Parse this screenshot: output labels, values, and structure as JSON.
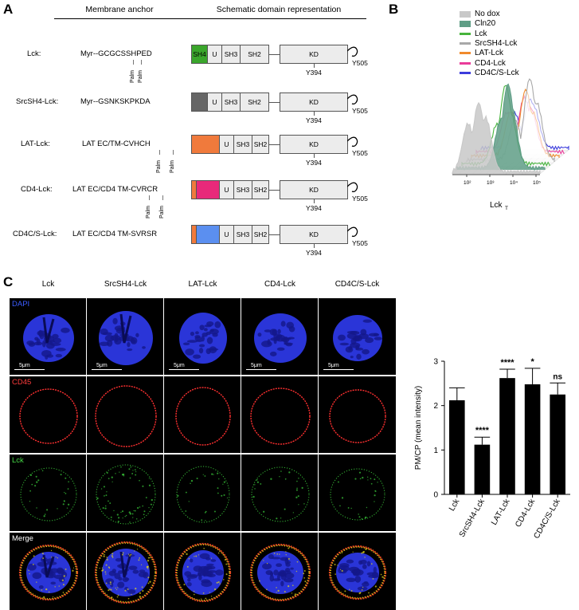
{
  "panel_a": {
    "letter": "A",
    "header_anchor": "Membrane anchor",
    "header_schematic": "Schematic domain representation",
    "constructs": [
      {
        "name": "Lck:",
        "anchor": "Myr--GCGCSSHPED",
        "palm": [
          "Palm",
          "Palm"
        ],
        "n_term": "SH4",
        "n_term_color": "#3aa62b"
      },
      {
        "name": "SrcSH4-Lck:",
        "anchor": "Myr--GSNKSKPKDA",
        "palm": [],
        "n_term": "",
        "n_term_color": "#666666"
      },
      {
        "name": "LAT-Lck:",
        "anchor": "LAT EC/TM-CVHCH",
        "palm": [
          "Palm",
          "Palm"
        ],
        "n_term": "",
        "n_term_color": "#f07a3c"
      },
      {
        "name": "CD4-Lck:",
        "anchor": "LAT EC/CD4 TM-CVRCR",
        "palm": [
          "Palm",
          "Palm"
        ],
        "n_term": "",
        "n_term_color": "#e8297a"
      },
      {
        "name": "CD4C/S-Lck:",
        "anchor": "LAT EC/CD4 TM-SVRSR",
        "palm": [],
        "n_term": "",
        "n_term_color": "#5b8ff0"
      }
    ],
    "domains": {
      "u": "U",
      "sh3": "SH3",
      "sh2": "SH2",
      "kd": "KD"
    },
    "sites": {
      "y394": "Y394",
      "y505": "Y505"
    },
    "tm_color": "#f07a3c"
  },
  "panel_b": {
    "letter": "B",
    "legend": [
      {
        "label": "No dox",
        "color": "#c8c8c8"
      },
      {
        "label": "Cln20",
        "color": "#5f9e86"
      },
      {
        "label": "Lck",
        "color": "#46b43c"
      },
      {
        "label": "SrcSH4-Lck",
        "color": "#a8a8a8"
      },
      {
        "label": "LAT-Lck",
        "color": "#f08a2c"
      },
      {
        "label": "CD4-Lck",
        "color": "#ea3c9a"
      },
      {
        "label": "CD4C/S-Lck",
        "color": "#3c3cdc"
      }
    ],
    "x_ticks": [
      "10²",
      "10³",
      "10⁴",
      "10⁵"
    ],
    "x_label": "Lck",
    "x_label_sub": "T"
  },
  "panel_c": {
    "letter": "C",
    "columns": [
      "Lck",
      "SrcSH4-Lck",
      "LAT-Lck",
      "CD4-Lck",
      "CD4C/S-Lck"
    ],
    "rows": [
      {
        "label": "DAPI",
        "color": "#3c5cff"
      },
      {
        "label": "CD45",
        "color": "#ff3c3c"
      },
      {
        "label": "Lck",
        "color": "#46d846"
      },
      {
        "label": "Merge",
        "color": "#ffffff"
      }
    ],
    "scale_label": "5μm"
  },
  "chart_data": {
    "type": "bar",
    "categories": [
      "Lck",
      "SrcSH4-Lck",
      "LAT-Lck",
      "CD4-Lck",
      "CD4C/S-Lck"
    ],
    "values": [
      2.12,
      1.12,
      2.62,
      2.48,
      2.25
    ],
    "errors": [
      0.28,
      0.17,
      0.2,
      0.36,
      0.26
    ],
    "significance": [
      "",
      "****",
      "****",
      "*",
      "ns"
    ],
    "ylabel": "PM/CP (mean intensity)",
    "ylim": [
      0,
      3
    ],
    "yticks": [
      "0",
      "1",
      "2",
      "3"
    ],
    "bar_color": "#000000"
  }
}
